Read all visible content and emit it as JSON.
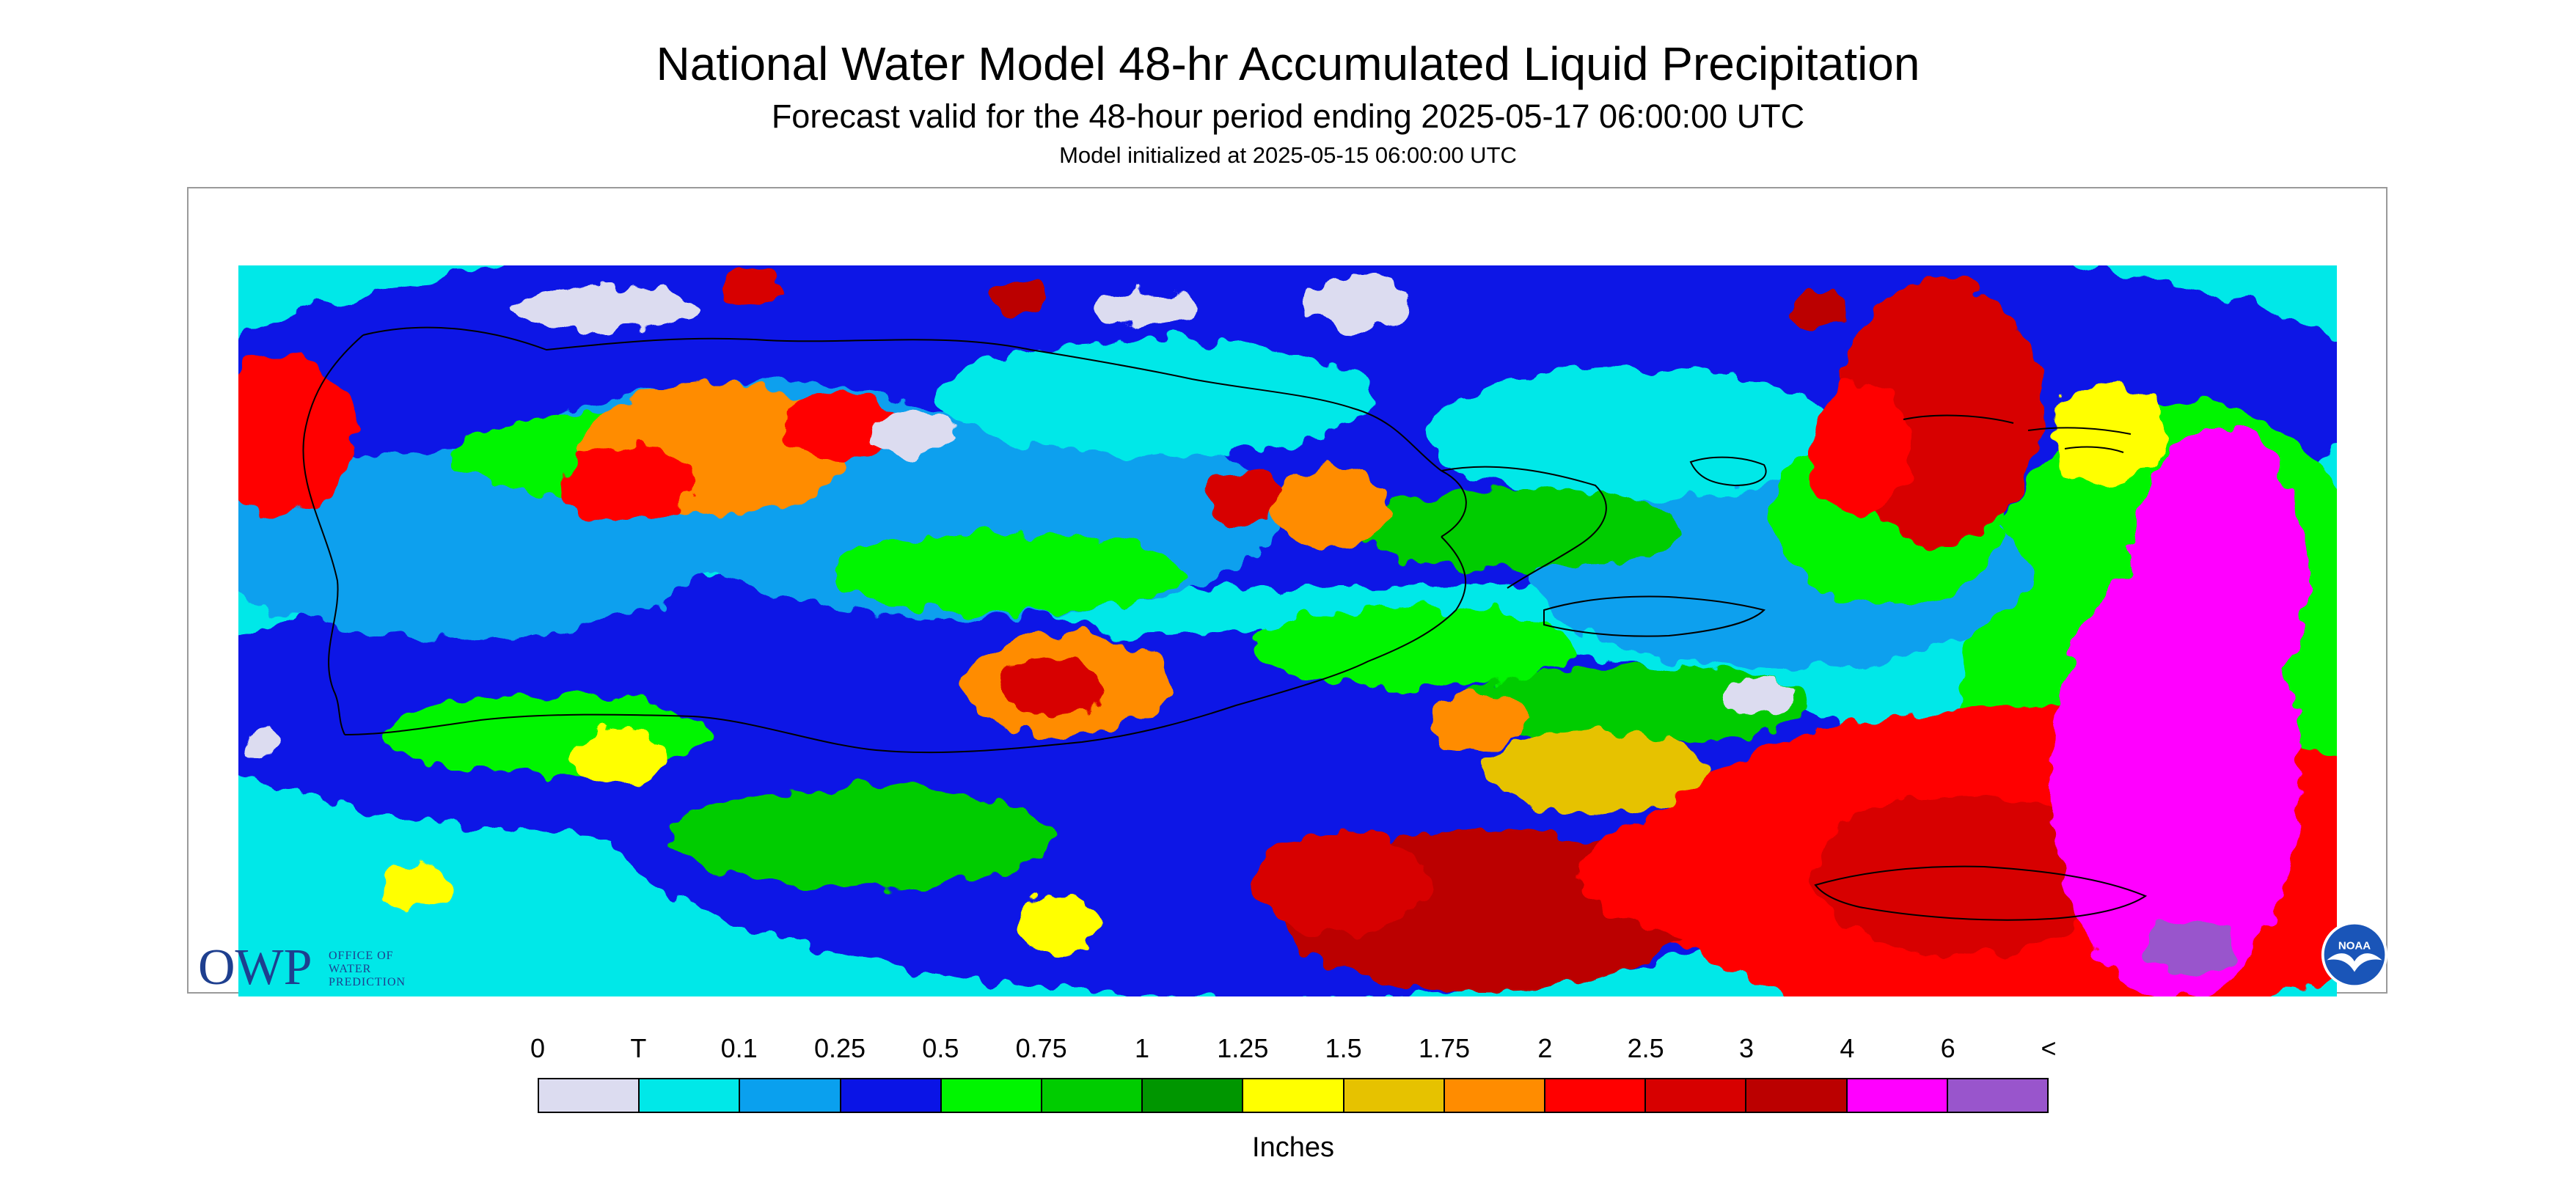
{
  "header": {
    "title": "National Water Model 48-hr Accumulated Liquid Precipitation",
    "subtitle": "Forecast valid for the 48-hour period ending 2025-05-17 06:00:00 UTC",
    "init": "Model initialized at 2025-05-15 06:00:00 UTC"
  },
  "logos": {
    "owp_letters": "OWP",
    "owp_text": "OFFICE OF WATER PREDICTION",
    "noaa_text": "NOAA"
  },
  "legend": {
    "units": "Inches",
    "labels": [
      "0",
      "T",
      "0.1",
      "0.25",
      "0.5",
      "0.75",
      "1",
      "1.25",
      "1.5",
      "1.75",
      "2",
      "2.5",
      "3",
      "4",
      "6",
      "<"
    ],
    "colors": [
      "#dcdcf0",
      "#00e8e8",
      "#0aa0ee",
      "#0a14e6",
      "#00f500",
      "#00cc00",
      "#009600",
      "#ffff00",
      "#e6c200",
      "#ff8c00",
      "#ff0000",
      "#d70000",
      "#bb0000",
      "#ff00ff",
      "#9955cc"
    ]
  },
  "map": {
    "base_color": "#00e8e8",
    "outline_color": "#000000",
    "noaa_colors": {
      "ring": "#ffffff",
      "sky": "#1a55b8",
      "gull": "#ffffff"
    }
  }
}
